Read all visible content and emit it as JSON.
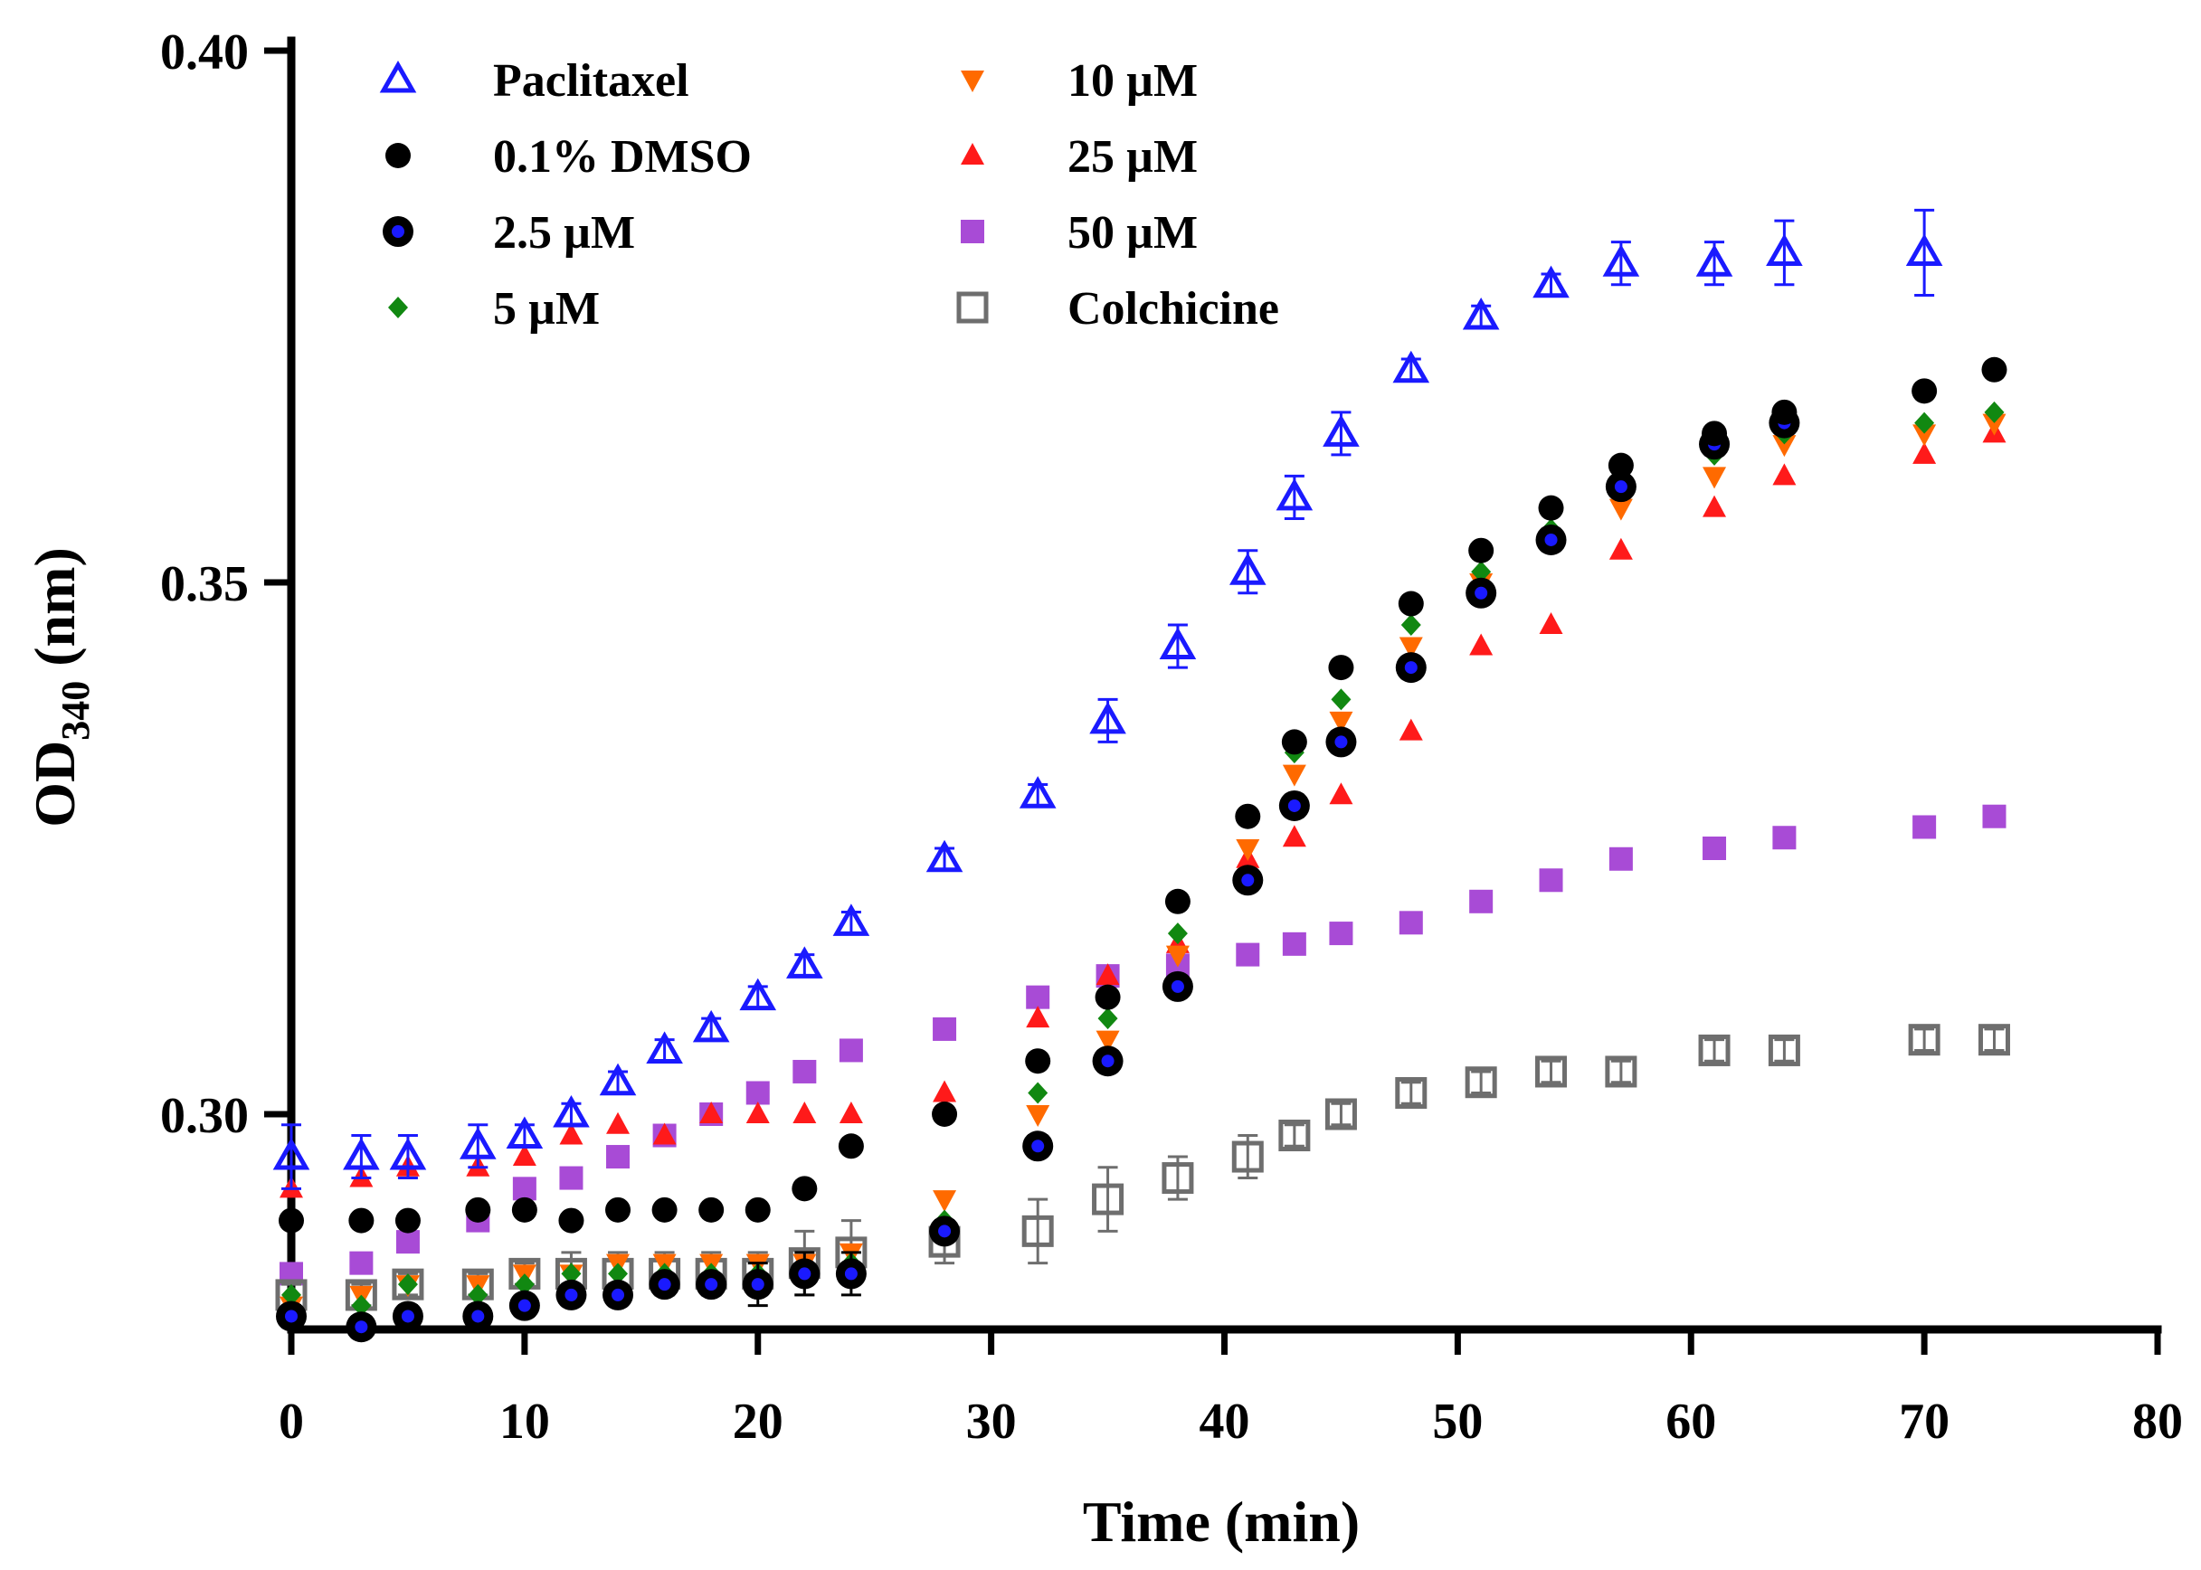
{
  "chart_data": {
    "type": "scatter",
    "title": "",
    "xlabel": "Time (min)",
    "ylabel": {
      "prefix": "OD",
      "subscript": "340",
      "suffix": " (nm)"
    },
    "xlim": [
      0,
      80
    ],
    "ylim": [
      0.28,
      0.4
    ],
    "x_ticks": [
      0,
      10,
      20,
      30,
      40,
      50,
      60,
      70,
      80
    ],
    "x_tick_labels": [
      "0",
      "10",
      "20",
      "30",
      "40",
      "50",
      "60",
      "70",
      "80"
    ],
    "y_ticks": [
      0.3,
      0.35,
      0.4
    ],
    "y_tick_labels": [
      "0.30",
      "0.35",
      "0.40"
    ],
    "grid": false,
    "legend_position": "top-left",
    "series": [
      {
        "name": "Paclitaxel",
        "marker": "triangle-up-open",
        "color": "#1a1aff",
        "x": [
          0,
          3,
          5,
          8,
          10,
          12,
          14,
          16,
          18,
          20,
          22,
          24,
          28,
          32,
          35,
          38,
          41,
          43,
          45,
          48,
          51,
          54,
          57,
          61,
          64,
          70
        ],
        "y": [
          0.296,
          0.296,
          0.296,
          0.297,
          0.298,
          0.3,
          0.303,
          0.306,
          0.308,
          0.311,
          0.314,
          0.318,
          0.324,
          0.33,
          0.337,
          0.344,
          0.351,
          0.358,
          0.364,
          0.37,
          0.375,
          0.378,
          0.38,
          0.38,
          0.381,
          0.381
        ],
        "error": [
          0.003,
          0.002,
          0.002,
          0.002,
          0.001,
          0.001,
          0.001,
          0.001,
          0.001,
          0.001,
          0.001,
          0.001,
          0.001,
          0.001,
          0.002,
          0.002,
          0.002,
          0.002,
          0.002,
          0.001,
          0.001,
          0.001,
          0.002,
          0.002,
          0.003,
          0.004
        ]
      },
      {
        "name": "0.1% DMSO",
        "marker": "circle",
        "color": "#000000",
        "x": [
          0,
          3,
          5,
          8,
          10,
          12,
          14,
          16,
          18,
          20,
          22,
          24,
          28,
          32,
          35,
          38,
          41,
          43,
          45,
          48,
          51,
          54,
          57,
          61,
          64,
          70,
          73
        ],
        "y": [
          0.29,
          0.29,
          0.29,
          0.291,
          0.291,
          0.29,
          0.291,
          0.291,
          0.291,
          0.291,
          0.293,
          0.297,
          0.3,
          0.305,
          0.311,
          0.32,
          0.328,
          0.335,
          0.342,
          0.348,
          0.353,
          0.357,
          0.361,
          0.364,
          0.366,
          0.368,
          0.37
        ],
        "error": []
      },
      {
        "name": "2.5 µM",
        "marker": "circle-blue-center",
        "color": "#000000",
        "x": [
          0,
          3,
          5,
          8,
          10,
          12,
          14,
          16,
          18,
          20,
          22,
          24,
          28,
          32,
          35,
          38,
          41,
          43,
          45,
          48,
          51,
          54,
          57,
          61,
          64
        ],
        "y": [
          0.281,
          0.28,
          0.281,
          0.281,
          0.282,
          0.283,
          0.283,
          0.284,
          0.284,
          0.284,
          0.285,
          0.285,
          0.289,
          0.297,
          0.305,
          0.312,
          0.322,
          0.329,
          0.335,
          0.342,
          0.349,
          0.354,
          0.359,
          0.363,
          0.365
        ],
        "error": [
          0.001,
          0.001,
          0.001,
          0.001,
          0.001,
          0.001,
          0.001,
          0.001,
          0.001,
          0.002,
          0.002,
          0.002,
          0.001,
          0.001,
          0.001,
          0.001,
          0.001,
          0.001,
          0.001,
          0.001,
          0.001,
          0.001,
          0.001,
          0.001,
          0.001
        ]
      },
      {
        "name": "5 µM",
        "marker": "diamond",
        "color": "#118811",
        "x": [
          0,
          3,
          5,
          8,
          10,
          12,
          14,
          16,
          18,
          20,
          22,
          24,
          28,
          32,
          35,
          38,
          41,
          43,
          45,
          48,
          51,
          54,
          57,
          61,
          64,
          70,
          73
        ],
        "y": [
          0.283,
          0.282,
          0.284,
          0.283,
          0.284,
          0.285,
          0.285,
          0.285,
          0.285,
          0.285,
          0.285,
          0.286,
          0.29,
          0.302,
          0.309,
          0.317,
          0.328,
          0.334,
          0.339,
          0.346,
          0.351,
          0.355,
          0.359,
          0.362,
          0.364,
          0.365,
          0.366
        ],
        "error": []
      },
      {
        "name": "10 µM",
        "marker": "triangle-down",
        "color": "#ff6a00",
        "x": [
          0,
          3,
          5,
          8,
          10,
          12,
          14,
          16,
          18,
          20,
          22,
          24,
          28,
          32,
          35,
          38,
          41,
          43,
          45,
          48,
          51,
          54,
          57,
          61,
          64,
          70,
          73
        ],
        "y": [
          0.282,
          0.283,
          0.284,
          0.284,
          0.285,
          0.285,
          0.286,
          0.286,
          0.286,
          0.286,
          0.286,
          0.287,
          0.292,
          0.3,
          0.307,
          0.315,
          0.325,
          0.332,
          0.337,
          0.344,
          0.35,
          0.354,
          0.357,
          0.36,
          0.363,
          0.364,
          0.365
        ],
        "error": []
      },
      {
        "name": "25 µM",
        "marker": "triangle-up",
        "color": "#ff1a1a",
        "x": [
          0,
          3,
          5,
          8,
          10,
          12,
          14,
          16,
          18,
          20,
          22,
          24,
          28,
          32,
          35,
          38,
          41,
          43,
          45,
          48,
          51,
          54,
          57,
          61,
          64,
          70,
          73
        ],
        "y": [
          0.293,
          0.294,
          0.295,
          0.295,
          0.296,
          0.298,
          0.299,
          0.298,
          0.3,
          0.3,
          0.3,
          0.3,
          0.302,
          0.309,
          0.313,
          0.316,
          0.324,
          0.326,
          0.33,
          0.336,
          0.344,
          0.346,
          0.353,
          0.357,
          0.36,
          0.362,
          0.364
        ],
        "error": []
      },
      {
        "name": "50 µM",
        "marker": "square",
        "color": "#a84bd6",
        "x": [
          0,
          3,
          5,
          8,
          10,
          12,
          14,
          16,
          18,
          20,
          22,
          24,
          28,
          32,
          35,
          38,
          41,
          43,
          45,
          48,
          51,
          54,
          57,
          61,
          64,
          70,
          73
        ],
        "y": [
          0.285,
          0.286,
          0.288,
          0.29,
          0.293,
          0.294,
          0.296,
          0.298,
          0.3,
          0.302,
          0.304,
          0.306,
          0.308,
          0.311,
          0.313,
          0.314,
          0.315,
          0.316,
          0.317,
          0.318,
          0.32,
          0.322,
          0.324,
          0.325,
          0.326,
          0.327,
          0.328
        ],
        "error": []
      },
      {
        "name": "Colchicine",
        "marker": "square-open",
        "color": "#6e6e6e",
        "x": [
          0,
          3,
          5,
          8,
          10,
          12,
          14,
          16,
          18,
          20,
          22,
          24,
          28,
          32,
          35,
          38,
          41,
          43,
          45,
          48,
          51,
          54,
          57,
          61,
          64,
          70,
          73
        ],
        "y": [
          0.283,
          0.283,
          0.284,
          0.284,
          0.285,
          0.285,
          0.285,
          0.285,
          0.285,
          0.285,
          0.286,
          0.287,
          0.288,
          0.289,
          0.292,
          0.294,
          0.296,
          0.298,
          0.3,
          0.302,
          0.303,
          0.304,
          0.304,
          0.306,
          0.306,
          0.307,
          0.307
        ],
        "error": [
          0.001,
          0.001,
          0.001,
          0.001,
          0.001,
          0.002,
          0.002,
          0.002,
          0.002,
          0.002,
          0.003,
          0.003,
          0.002,
          0.003,
          0.003,
          0.002,
          0.002,
          0.001,
          0.001,
          0.001,
          0.001,
          0.001,
          0.001,
          0.001,
          0.001,
          0.001,
          0.001
        ]
      }
    ]
  }
}
